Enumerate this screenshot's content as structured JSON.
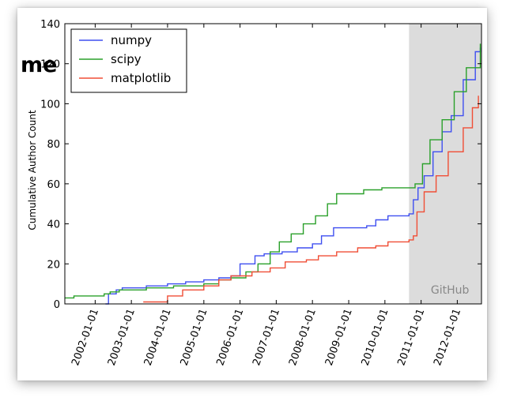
{
  "overlay_text": "me",
  "chart_data": {
    "type": "line",
    "title": "",
    "xlabel": "",
    "ylabel": "Cumulative Author Count",
    "xlim": [
      "2001-03-01",
      "2012-09-01"
    ],
    "ylim": [
      0,
      140
    ],
    "yticks": [
      0,
      20,
      40,
      60,
      80,
      100,
      120,
      140
    ],
    "xticks": [
      "2002-01-01",
      "2003-01-01",
      "2004-01-01",
      "2005-01-01",
      "2006-01-01",
      "2007-01-01",
      "2008-01-01",
      "2009-01-01",
      "2010-01-01",
      "2011-01-01",
      "2012-01-01"
    ],
    "grid": false,
    "legend_position": "top-left",
    "shaded_region": {
      "label": "GitHub",
      "from": "2010-09-01",
      "to": "2012-09-01",
      "color": "#dcdcdc"
    },
    "series": [
      {
        "name": "numpy",
        "color": "#3f4ff0",
        "points": [
          [
            "2002-04-15",
            0
          ],
          [
            "2002-05-15",
            5
          ],
          [
            "2002-08-01",
            7
          ],
          [
            "2002-10-01",
            8
          ],
          [
            "2003-06-01",
            9
          ],
          [
            "2004-01-01",
            10
          ],
          [
            "2004-07-01",
            11
          ],
          [
            "2005-01-01",
            12
          ],
          [
            "2005-06-01",
            13
          ],
          [
            "2005-10-01",
            14
          ],
          [
            "2006-01-01",
            20
          ],
          [
            "2006-06-01",
            24
          ],
          [
            "2006-09-01",
            25
          ],
          [
            "2007-03-01",
            26
          ],
          [
            "2007-08-01",
            28
          ],
          [
            "2008-01-01",
            30
          ],
          [
            "2008-04-01",
            34
          ],
          [
            "2008-08-01",
            38
          ],
          [
            "2009-07-01",
            39
          ],
          [
            "2009-10-01",
            42
          ],
          [
            "2010-02-01",
            44
          ],
          [
            "2010-09-01",
            45
          ],
          [
            "2010-10-15",
            52
          ],
          [
            "2010-12-01",
            58
          ],
          [
            "2011-02-01",
            64
          ],
          [
            "2011-05-01",
            76
          ],
          [
            "2011-08-01",
            86
          ],
          [
            "2011-11-01",
            94
          ],
          [
            "2012-03-01",
            112
          ],
          [
            "2012-07-01",
            126
          ],
          [
            "2012-08-20",
            128
          ]
        ]
      },
      {
        "name": "scipy",
        "color": "#2aa02a",
        "points": [
          [
            "2001-03-01",
            3
          ],
          [
            "2001-06-01",
            4
          ],
          [
            "2002-02-01",
            4
          ],
          [
            "2002-04-01",
            5
          ],
          [
            "2002-06-01",
            6
          ],
          [
            "2002-09-01",
            7
          ],
          [
            "2003-06-01",
            8
          ],
          [
            "2004-03-01",
            9
          ],
          [
            "2005-01-01",
            10
          ],
          [
            "2005-06-01",
            12
          ],
          [
            "2005-10-01",
            13
          ],
          [
            "2006-03-01",
            16
          ],
          [
            "2006-07-01",
            20
          ],
          [
            "2006-11-01",
            26
          ],
          [
            "2007-02-01",
            31
          ],
          [
            "2007-06-01",
            35
          ],
          [
            "2007-10-01",
            40
          ],
          [
            "2008-02-01",
            44
          ],
          [
            "2008-06-01",
            50
          ],
          [
            "2008-09-01",
            55
          ],
          [
            "2009-06-01",
            57
          ],
          [
            "2009-12-01",
            58
          ],
          [
            "2010-09-01",
            58
          ],
          [
            "2010-11-01",
            60
          ],
          [
            "2011-01-15",
            70
          ],
          [
            "2011-04-01",
            82
          ],
          [
            "2011-08-01",
            92
          ],
          [
            "2011-12-01",
            106
          ],
          [
            "2012-04-01",
            118
          ],
          [
            "2012-08-20",
            130
          ]
        ]
      },
      {
        "name": "matplotlib",
        "color": "#f04e36",
        "points": [
          [
            "2003-05-01",
            1
          ],
          [
            "2003-11-01",
            1
          ],
          [
            "2004-01-01",
            4
          ],
          [
            "2004-06-01",
            7
          ],
          [
            "2005-01-01",
            9
          ],
          [
            "2005-06-01",
            12
          ],
          [
            "2005-10-01",
            14
          ],
          [
            "2006-05-01",
            16
          ],
          [
            "2006-11-01",
            18
          ],
          [
            "2007-04-01",
            21
          ],
          [
            "2007-11-01",
            22
          ],
          [
            "2008-03-01",
            24
          ],
          [
            "2008-09-01",
            26
          ],
          [
            "2009-04-01",
            28
          ],
          [
            "2009-10-01",
            29
          ],
          [
            "2010-02-01",
            31
          ],
          [
            "2010-09-01",
            32
          ],
          [
            "2010-10-15",
            34
          ],
          [
            "2010-11-20",
            46
          ],
          [
            "2011-02-01",
            56
          ],
          [
            "2011-06-01",
            64
          ],
          [
            "2011-10-01",
            76
          ],
          [
            "2012-03-01",
            88
          ],
          [
            "2012-06-01",
            98
          ],
          [
            "2012-08-01",
            104
          ]
        ]
      }
    ]
  }
}
